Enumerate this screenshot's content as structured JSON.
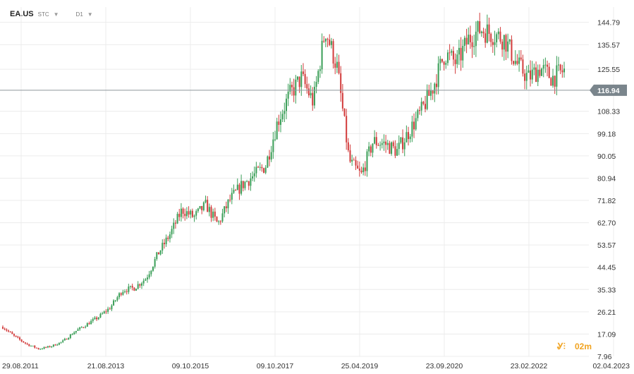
{
  "header": {
    "symbol": "EA.US",
    "symbol_sub": "STC",
    "timeframe": "D1"
  },
  "colors": {
    "up": "#3a9e57",
    "down": "#d23b3b",
    "grid": "#ececec",
    "price_line": "#8d969b",
    "price_tag": "#7a858c",
    "watermark": "#f1a320"
  },
  "watermark": {
    "text": "02m"
  },
  "chart_data": {
    "type": "candlestick",
    "title": "",
    "xlabel": "",
    "ylabel": "",
    "ylim": [
      7.96,
      151
    ],
    "y_tick_labels": [
      "144.79",
      "135.57",
      "125.55",
      "108.33",
      "99.18",
      "90.05",
      "80.94",
      "71.82",
      "62.70",
      "53.57",
      "44.45",
      "35.33",
      "26.21",
      "17.09",
      "7.96"
    ],
    "y_tick_values": [
      144.79,
      135.57,
      125.55,
      108.33,
      99.18,
      90.05,
      80.94,
      71.82,
      62.7,
      53.57,
      44.45,
      35.33,
      26.21,
      17.09,
      7.96
    ],
    "x_tick_labels": [
      "29.08.2011",
      "21.08.2013",
      "09.10.2015",
      "09.10.2017",
      "25.04.2019",
      "23.09.2020",
      "23.02.2022",
      "02.04.2023"
    ],
    "current_price": "116.94",
    "current_price_value": 116.94,
    "grid": true,
    "series": [
      {
        "dates": [
          "2011-08",
          "2011-11",
          "2012-02",
          "2012-05",
          "2012-08",
          "2012-11",
          "2013-02",
          "2013-05",
          "2013-08",
          "2013-11",
          "2014-02",
          "2014-05",
          "2014-08",
          "2014-11",
          "2015-02",
          "2015-05",
          "2015-08",
          "2015-11",
          "2016-02",
          "2016-05",
          "2016-08",
          "2016-11",
          "2017-02",
          "2017-05",
          "2017-08",
          "2017-11",
          "2018-02",
          "2018-05",
          "2018-08",
          "2018-11",
          "2019-02",
          "2019-05",
          "2019-08",
          "2019-11",
          "2020-02",
          "2020-05",
          "2020-08",
          "2020-11",
          "2021-02",
          "2021-05",
          "2021-08",
          "2021-11",
          "2022-02",
          "2022-05",
          "2022-08",
          "2022-11",
          "2023-02",
          "2023-04"
        ],
        "close": [
          20,
          16,
          13,
          11,
          12,
          14,
          18,
          21,
          24,
          28,
          35,
          36,
          40,
          50,
          58,
          68,
          65,
          70,
          62,
          72,
          78,
          82,
          86,
          104,
          115,
          122,
          112,
          142,
          126,
          88,
          82,
          96,
          95,
          92,
          100,
          108,
          118,
          132,
          128,
          138,
          142,
          140,
          138,
          128,
          122,
          126,
          122,
          125
        ]
      }
    ]
  }
}
